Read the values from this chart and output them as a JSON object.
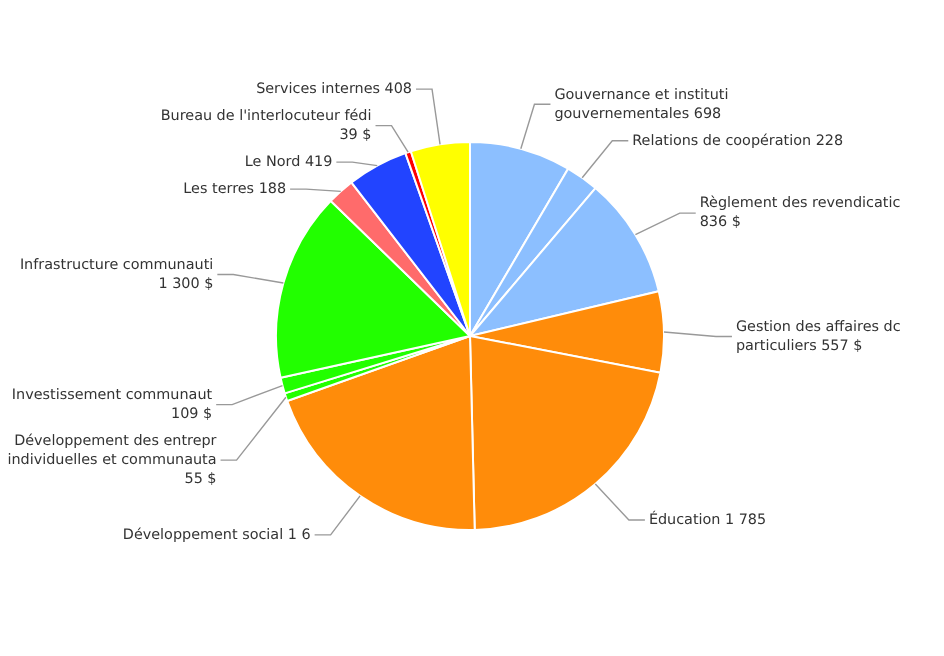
{
  "chart_data": {
    "type": "pie",
    "categories": [
      "Gouvernance et instituti\ngouvernementales",
      "Relations de coopération",
      "Règlement des revendicatic\n",
      "Gestion des affaires dc\nparticuliers",
      "Éducation",
      "Développement social 1 6",
      "Développement des entrepr\nindividuelles et communauta\n",
      "Investissement communaut\n",
      "Infrastructure communauti\n",
      "Les terres",
      "Le Nord",
      "Bureau de l'interlocuteur fédi\n",
      "Services internes"
    ],
    "values": [
      698,
      228,
      836,
      557,
      1785,
      1650,
      55,
      109,
      1300,
      188,
      419,
      39,
      408
    ],
    "value_labels": [
      "698",
      "228",
      "836 $",
      "557 $",
      "1 785",
      null,
      "55 $",
      "109 $",
      "1  300 $",
      "188",
      "419",
      "39 $",
      "408"
    ],
    "colors": [
      "#8cbfff",
      "#8cbfff",
      "#8cbfff",
      "#ff8c0a",
      "#ff8c0a",
      "#ff8c0a",
      "#22ff00",
      "#22ff00",
      "#22ff00",
      "#ff6b6b",
      "#2244ff",
      "#ff0000",
      "#ffff00"
    ]
  }
}
